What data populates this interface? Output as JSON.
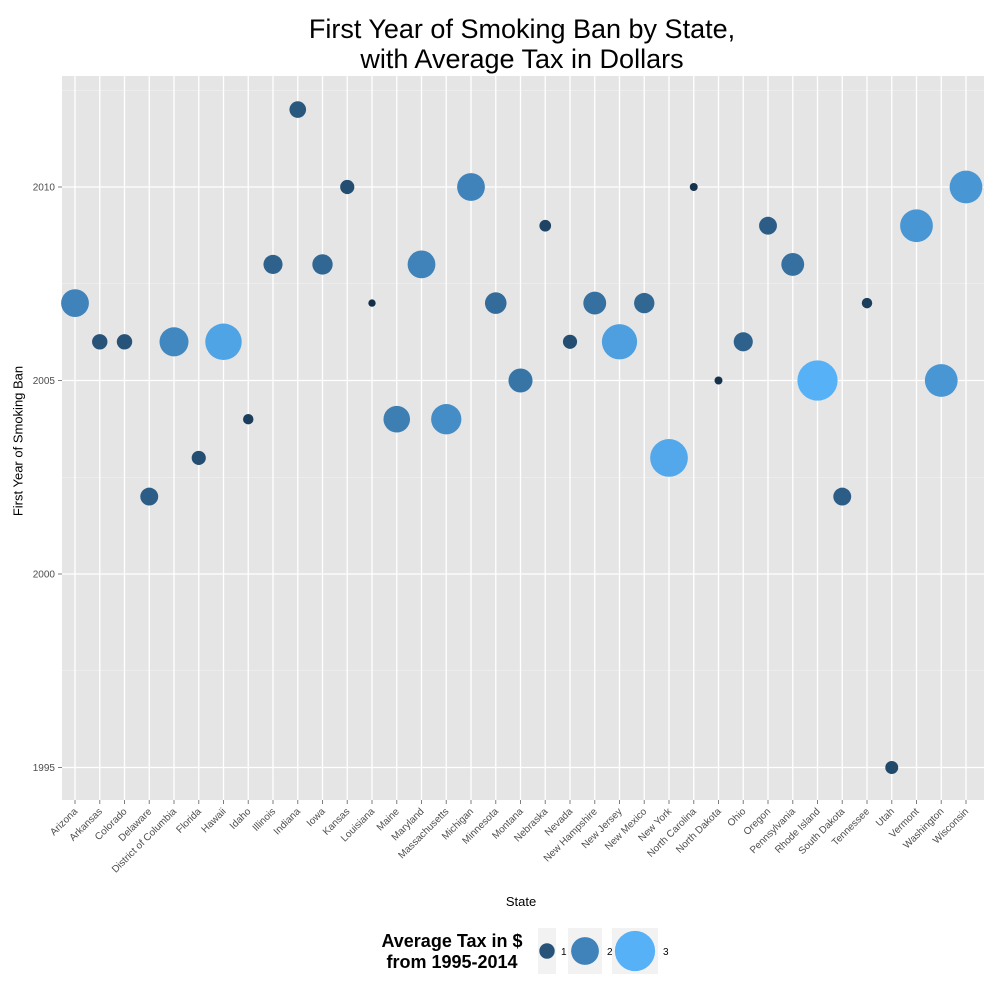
{
  "chart_data": {
    "type": "scatter",
    "title_line1": "First Year of Smoking Ban by State,",
    "title_line2": "with Average Tax in Dollars",
    "xlabel": "State",
    "ylabel": "First Year of Smoking Ban",
    "ylim": [
      1994.2,
      2012.9
    ],
    "yticks": [
      1995,
      2000,
      2005,
      2010
    ],
    "grid": true,
    "legend_position": "bottom",
    "legend_title_line1": "Average Tax in $",
    "legend_title_line2": "from 1995-2014",
    "legend_items": [
      {
        "label": "1",
        "value": 1
      },
      {
        "label": "2",
        "value": 2
      },
      {
        "label": "3",
        "value": 3
      }
    ],
    "color_low": "#132B43",
    "color_high": "#56B1F7",
    "categories": [
      "Arizona",
      "Arkansas",
      "Colorado",
      "Delaware",
      "District of Columbia",
      "Florida",
      "Hawaii",
      "Idaho",
      "Illinois",
      "Indiana",
      "Iowa",
      "Kansas",
      "Louisiana",
      "Maine",
      "Maryland",
      "Massachusetts",
      "Michigan",
      "Minnesota",
      "Montana",
      "Nebraska",
      "Nevada",
      "New Hampshire",
      "New Jersey",
      "New Mexico",
      "New York",
      "North Carolina",
      "North Dakota",
      "Ohio",
      "Oregon",
      "Pennsylvania",
      "Rhode Island",
      "South Dakota",
      "Tennessee",
      "Utah",
      "Vermont",
      "Washington",
      "Wisconsin"
    ],
    "points": [
      {
        "state": "Arizona",
        "year": 2007,
        "tax": 2.0
      },
      {
        "state": "Arkansas",
        "year": 2006,
        "tax": 1.0
      },
      {
        "state": "Colorado",
        "year": 2006,
        "tax": 1.0
      },
      {
        "state": "Delaware",
        "year": 2002,
        "tax": 1.2
      },
      {
        "state": "District of Columbia",
        "year": 2006,
        "tax": 2.1
      },
      {
        "state": "Florida",
        "year": 2003,
        "tax": 0.9
      },
      {
        "state": "Hawaii",
        "year": 2006,
        "tax": 2.7
      },
      {
        "state": "Idaho",
        "year": 2004,
        "tax": 0.6
      },
      {
        "state": "Illinois",
        "year": 2008,
        "tax": 1.3
      },
      {
        "state": "Indiana",
        "year": 2012,
        "tax": 1.1
      },
      {
        "state": "Iowa",
        "year": 2008,
        "tax": 1.4
      },
      {
        "state": "Kansas",
        "year": 2010,
        "tax": 0.9
      },
      {
        "state": "Louisiana",
        "year": 2007,
        "tax": 0.35
      },
      {
        "state": "Maine",
        "year": 2004,
        "tax": 1.9
      },
      {
        "state": "Maryland",
        "year": 2008,
        "tax": 2.0
      },
      {
        "state": "Massachusetts",
        "year": 2004,
        "tax": 2.2
      },
      {
        "state": "Michigan",
        "year": 2010,
        "tax": 2.0
      },
      {
        "state": "Minnesota",
        "year": 2007,
        "tax": 1.5
      },
      {
        "state": "Montana",
        "year": 2005,
        "tax": 1.7
      },
      {
        "state": "Nebraska",
        "year": 2009,
        "tax": 0.7
      },
      {
        "state": "Nevada",
        "year": 2006,
        "tax": 0.9
      },
      {
        "state": "New Hampshire",
        "year": 2007,
        "tax": 1.6
      },
      {
        "state": "New Jersey",
        "year": 2006,
        "tax": 2.6
      },
      {
        "state": "New Mexico",
        "year": 2007,
        "tax": 1.4
      },
      {
        "state": "New York",
        "year": 2003,
        "tax": 2.8
      },
      {
        "state": "North Carolina",
        "year": 2010,
        "tax": 0.4
      },
      {
        "state": "North Dakota",
        "year": 2005,
        "tax": 0.4
      },
      {
        "state": "Ohio",
        "year": 2006,
        "tax": 1.3
      },
      {
        "state": "Oregon",
        "year": 2009,
        "tax": 1.2
      },
      {
        "state": "Pennsylvania",
        "year": 2008,
        "tax": 1.6
      },
      {
        "state": "Rhode Island",
        "year": 2005,
        "tax": 3.0
      },
      {
        "state": "South Dakota",
        "year": 2002,
        "tax": 1.2
      },
      {
        "state": "Tennessee",
        "year": 2007,
        "tax": 0.6
      },
      {
        "state": "Utah",
        "year": 1995,
        "tax": 0.8
      },
      {
        "state": "Vermont",
        "year": 2009,
        "tax": 2.4
      },
      {
        "state": "Washington",
        "year": 2005,
        "tax": 2.4
      },
      {
        "state": "Wisconsin",
        "year": 2010,
        "tax": 2.4
      }
    ]
  }
}
